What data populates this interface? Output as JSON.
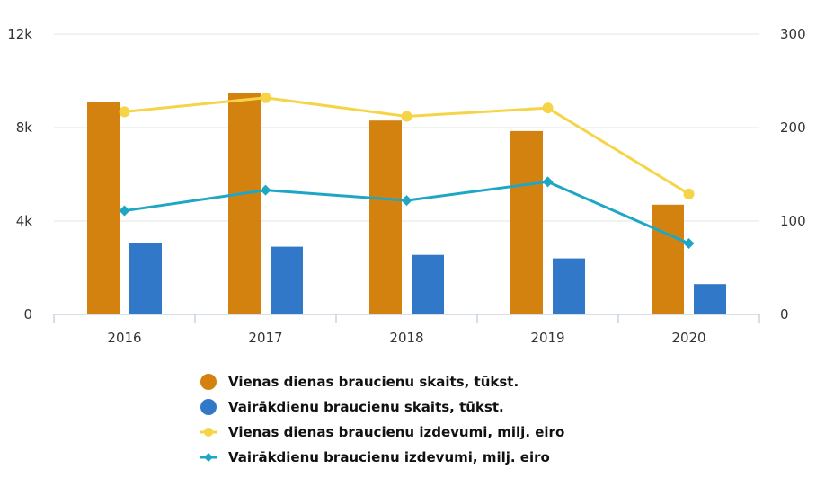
{
  "chart_data": {
    "type": "bar",
    "categories": [
      "2016",
      "2017",
      "2018",
      "2019",
      "2020"
    ],
    "left_axis": {
      "ticks": [
        0,
        4000,
        8000,
        12000
      ],
      "tick_labels": [
        "0",
        "4k",
        "8k",
        "12k"
      ],
      "ylim": [
        0,
        12000
      ]
    },
    "right_axis": {
      "ticks": [
        0,
        100,
        200,
        300
      ],
      "tick_labels": [
        "0",
        "100",
        "200",
        "300"
      ],
      "ylim": [
        0,
        300
      ]
    },
    "grid": true,
    "legend_position": "bottom",
    "series": [
      {
        "name": "Vienas dienas braucienu skaits, tūkst.",
        "type": "bar",
        "axis": "left",
        "color": "#d4820f",
        "marker": "circle",
        "values": [
          9100,
          9500,
          8300,
          7850,
          4700
        ]
      },
      {
        "name": "Vairākdienu braucienu skaits, tūkst.",
        "type": "bar",
        "axis": "left",
        "color": "#3278c8",
        "marker": "circle",
        "values": [
          3050,
          2900,
          2550,
          2400,
          1300
        ]
      },
      {
        "name": "Vienas dienas braucienu izdevumi, milj. eiro",
        "type": "line",
        "axis": "right",
        "color": "#f5d547",
        "marker": "circle",
        "values": [
          217,
          232,
          212,
          221,
          129
        ]
      },
      {
        "name": "Vairākdienu braucienu izdevumi, milj. eiro",
        "type": "line",
        "axis": "right",
        "color": "#1ea7c4",
        "marker": "diamond",
        "values": [
          111,
          133,
          122,
          142,
          76
        ]
      }
    ]
  }
}
